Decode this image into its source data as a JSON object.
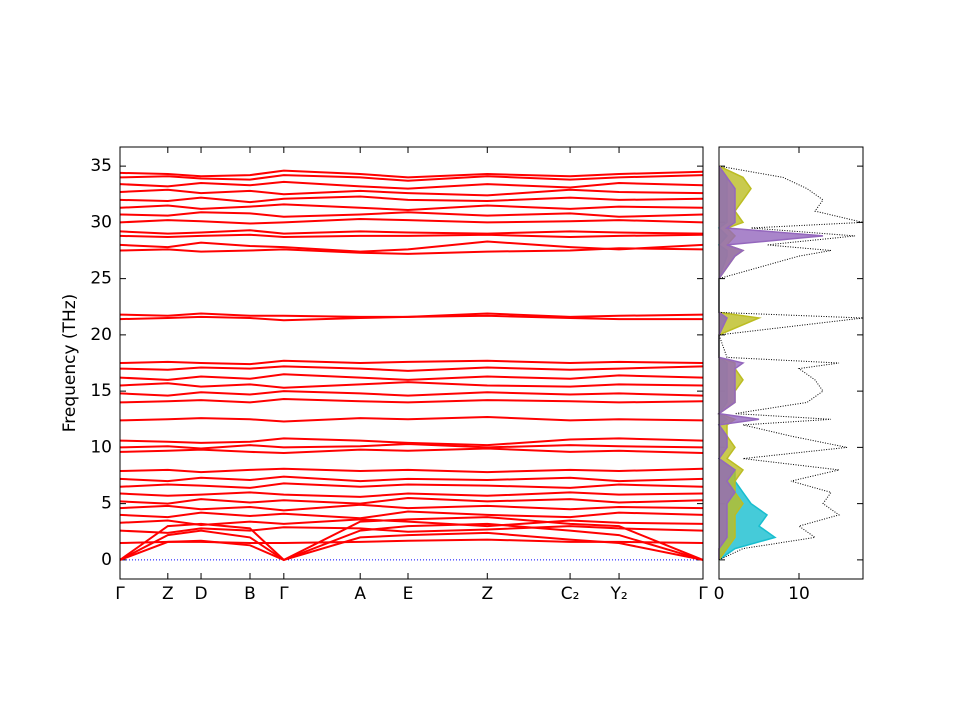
{
  "chart_data": [
    {
      "type": "line",
      "ylabel": "Frequency (THz)",
      "color": "#ff0000",
      "x": [
        0,
        0.082,
        0.139,
        0.223,
        0.281,
        0.412,
        0.494,
        0.63,
        0.772,
        0.856,
        1.0
      ],
      "xlim": [
        0,
        1.0
      ],
      "xticks": [
        {
          "value": 0,
          "label": "Γ"
        },
        {
          "value": 0.082,
          "label": "Z"
        },
        {
          "value": 0.139,
          "label": "D"
        },
        {
          "value": 0.223,
          "label": "B"
        },
        {
          "value": 0.281,
          "label": "Γ"
        },
        {
          "value": 0.412,
          "label": "A"
        },
        {
          "value": 0.494,
          "label": "E"
        },
        {
          "value": 0.63,
          "label": "Z"
        },
        {
          "value": 0.772,
          "label": "C₂"
        },
        {
          "value": 0.856,
          "label": "Y₂"
        },
        {
          "value": 1.0,
          "label": "Γ"
        }
      ],
      "ylim": [
        -1.7,
        36.7
      ],
      "yticks": [
        0,
        5,
        10,
        15,
        20,
        25,
        30,
        35
      ],
      "reference_line": {
        "value": 0,
        "color": "#0000ff"
      },
      "series": [
        {
          "values": [
            0,
            1.6,
            1.7,
            1.3,
            0,
            2.0,
            2.2,
            2.4,
            1.8,
            1.5,
            0
          ]
        },
        {
          "values": [
            0,
            2.2,
            2.6,
            2.0,
            0,
            2.6,
            3.0,
            3.2,
            2.6,
            2.2,
            0
          ]
        },
        {
          "values": [
            0,
            3.0,
            3.2,
            2.8,
            0,
            3.4,
            3.6,
            3.8,
            3.2,
            3.0,
            0
          ]
        },
        {
          "values": [
            1.5,
            1.6,
            1.6,
            1.5,
            1.5,
            1.6,
            1.7,
            1.8,
            1.6,
            1.6,
            1.5
          ]
        },
        {
          "values": [
            2.6,
            2.4,
            2.8,
            2.6,
            2.9,
            2.8,
            2.5,
            2.7,
            3.0,
            2.8,
            2.6
          ]
        },
        {
          "values": [
            3.3,
            3.5,
            3.1,
            3.4,
            3.2,
            3.6,
            3.4,
            3.0,
            3.5,
            3.3,
            3.2
          ]
        },
        {
          "values": [
            4.0,
            3.8,
            4.2,
            3.9,
            4.1,
            3.7,
            4.3,
            4.0,
            3.8,
            4.2,
            4.0
          ]
        },
        {
          "values": [
            4.6,
            4.8,
            4.5,
            4.7,
            4.4,
            4.9,
            4.6,
            4.8,
            4.5,
            4.7,
            4.6
          ]
        },
        {
          "values": [
            5.2,
            5.0,
            5.4,
            5.1,
            5.3,
            5.0,
            5.5,
            5.2,
            5.4,
            5.1,
            5.3
          ]
        },
        {
          "values": [
            5.9,
            5.7,
            5.8,
            6.0,
            5.8,
            5.6,
            5.9,
            5.7,
            6.0,
            5.8,
            5.9
          ]
        },
        {
          "values": [
            6.5,
            6.7,
            6.6,
            6.4,
            6.8,
            6.5,
            6.7,
            6.6,
            6.4,
            6.7,
            6.5
          ]
        },
        {
          "values": [
            7.2,
            7.0,
            7.3,
            7.1,
            7.4,
            7.0,
            7.2,
            7.1,
            7.3,
            7.0,
            7.2
          ]
        },
        {
          "values": [
            7.9,
            8.0,
            7.8,
            8.0,
            8.1,
            7.9,
            8.0,
            7.8,
            8.0,
            7.9,
            8.1
          ]
        },
        {
          "values": [
            9.6,
            9.7,
            9.8,
            9.6,
            9.5,
            9.8,
            9.7,
            9.9,
            9.6,
            9.7,
            9.5
          ]
        },
        {
          "values": [
            10.0,
            10.1,
            9.9,
            10.2,
            10.0,
            10.1,
            10.3,
            10.0,
            10.2,
            10.1,
            10.0
          ]
        },
        {
          "values": [
            10.6,
            10.5,
            10.4,
            10.5,
            10.8,
            10.6,
            10.4,
            10.2,
            10.7,
            10.8,
            10.6
          ]
        },
        {
          "values": [
            12.4,
            12.5,
            12.6,
            12.5,
            12.3,
            12.6,
            12.5,
            12.7,
            12.4,
            12.5,
            12.4
          ]
        },
        {
          "values": [
            14.0,
            14.1,
            14.2,
            14.0,
            14.3,
            14.1,
            14.0,
            14.2,
            14.1,
            14.0,
            14.1
          ]
        },
        {
          "values": [
            14.8,
            14.6,
            14.9,
            14.7,
            15.0,
            14.8,
            14.6,
            14.9,
            14.7,
            14.8,
            14.6
          ]
        },
        {
          "values": [
            15.5,
            15.7,
            15.4,
            15.6,
            15.3,
            15.6,
            15.8,
            15.5,
            15.4,
            15.6,
            15.5
          ]
        },
        {
          "values": [
            16.2,
            16.0,
            16.3,
            16.1,
            16.5,
            16.2,
            16.0,
            16.3,
            16.1,
            16.4,
            16.2
          ]
        },
        {
          "values": [
            17.0,
            16.9,
            17.1,
            17.0,
            17.2,
            17.0,
            16.8,
            17.1,
            16.9,
            17.0,
            17.2
          ]
        },
        {
          "values": [
            17.5,
            17.6,
            17.5,
            17.4,
            17.7,
            17.5,
            17.6,
            17.7,
            17.5,
            17.6,
            17.5
          ]
        },
        {
          "values": [
            21.4,
            21.5,
            21.6,
            21.5,
            21.3,
            21.5,
            21.6,
            21.7,
            21.5,
            21.4,
            21.4
          ]
        },
        {
          "values": [
            21.8,
            21.7,
            21.9,
            21.7,
            21.7,
            21.6,
            21.6,
            21.9,
            21.6,
            21.7,
            21.8
          ]
        },
        {
          "values": [
            27.5,
            27.6,
            27.4,
            27.5,
            27.6,
            27.3,
            27.2,
            27.4,
            27.5,
            27.7,
            27.6
          ]
        },
        {
          "values": [
            28.0,
            27.8,
            28.2,
            27.9,
            27.8,
            27.4,
            27.6,
            28.3,
            27.8,
            27.6,
            28.0
          ]
        },
        {
          "values": [
            28.8,
            28.7,
            28.8,
            28.9,
            28.7,
            28.8,
            28.8,
            28.9,
            28.7,
            28.8,
            28.9
          ]
        },
        {
          "values": [
            29.2,
            29.0,
            29.1,
            29.3,
            29.0,
            29.2,
            29.1,
            29.0,
            29.2,
            29.1,
            29.0
          ]
        },
        {
          "values": [
            30.0,
            30.2,
            30.1,
            29.9,
            30.0,
            30.3,
            30.2,
            30.0,
            30.1,
            30.2,
            30.0
          ]
        },
        {
          "values": [
            30.7,
            30.6,
            30.9,
            30.8,
            30.5,
            30.7,
            30.9,
            30.6,
            30.8,
            30.5,
            30.7
          ]
        },
        {
          "values": [
            31.3,
            31.5,
            31.2,
            31.4,
            31.6,
            31.3,
            31.1,
            31.5,
            31.2,
            31.4,
            31.3
          ]
        },
        {
          "values": [
            32.0,
            31.9,
            32.2,
            31.8,
            32.1,
            32.3,
            32.0,
            31.9,
            32.2,
            32.0,
            32.1
          ]
        },
        {
          "values": [
            32.7,
            32.9,
            32.6,
            32.8,
            32.5,
            32.8,
            32.6,
            32.4,
            32.9,
            32.7,
            32.6
          ]
        },
        {
          "values": [
            33.4,
            33.2,
            33.5,
            33.3,
            33.6,
            33.2,
            33.0,
            33.4,
            33.1,
            33.5,
            33.3
          ]
        },
        {
          "values": [
            34.0,
            34.1,
            33.9,
            33.8,
            34.2,
            34.0,
            33.7,
            34.1,
            33.8,
            34.0,
            34.2
          ]
        },
        {
          "values": [
            34.4,
            34.3,
            34.1,
            34.2,
            34.6,
            34.3,
            34.0,
            34.3,
            34.1,
            34.3,
            34.5
          ]
        }
      ]
    },
    {
      "type": "dos",
      "orientation": "horizontal",
      "y": [
        0,
        1,
        2,
        3,
        4,
        5,
        6,
        7,
        8,
        9,
        10,
        11,
        12,
        12.5,
        13,
        14,
        15,
        16,
        17,
        17.5,
        18,
        20,
        21.5,
        22,
        25,
        27,
        27.5,
        28,
        28.8,
        29.5,
        30,
        31,
        32,
        33,
        34,
        35
      ],
      "xlim": [
        0,
        18
      ],
      "xticks": [
        0,
        10
      ],
      "ylim": [
        -1.7,
        36.7
      ],
      "yticks": [
        0,
        5,
        10,
        15,
        20,
        25,
        30,
        35
      ],
      "series": [
        {
          "color": "#17becf",
          "style": "fill",
          "values": [
            0,
            2,
            7,
            5,
            6,
            4,
            3,
            2,
            2,
            0,
            1,
            1,
            0,
            1,
            0,
            1,
            1,
            1,
            1,
            1,
            0,
            0,
            1,
            0,
            0,
            1,
            1,
            0,
            1,
            0,
            1,
            1,
            1,
            1,
            1,
            0
          ]
        },
        {
          "color": "#bcbd22",
          "style": "fill",
          "values": [
            0,
            1,
            2,
            2,
            2,
            3,
            2,
            2,
            3,
            1,
            2,
            1,
            1,
            2,
            0,
            2,
            2,
            3,
            2,
            2,
            0,
            0,
            5,
            0,
            0,
            2,
            3,
            1,
            2,
            1,
            3,
            2,
            3,
            4,
            3,
            0
          ]
        },
        {
          "color": "#9467bd",
          "style": "fill",
          "values": [
            0,
            0,
            1,
            1,
            1,
            1,
            2,
            1,
            2,
            0,
            1,
            1,
            0,
            5,
            0,
            2,
            2,
            2,
            2,
            3,
            0,
            0,
            1,
            0,
            0,
            2,
            3,
            1,
            13,
            1,
            2,
            2,
            2,
            2,
            1,
            0
          ]
        },
        {
          "color": "#000000",
          "style": "dotted",
          "values": [
            0,
            3,
            12,
            10,
            15,
            13,
            14,
            9,
            15,
            3,
            16,
            9,
            3,
            14,
            2,
            11,
            13,
            12,
            10,
            15,
            1,
            0,
            18,
            0,
            0,
            10,
            14,
            6,
            17,
            4,
            18,
            12,
            13,
            11,
            8,
            0
          ]
        }
      ]
    }
  ]
}
